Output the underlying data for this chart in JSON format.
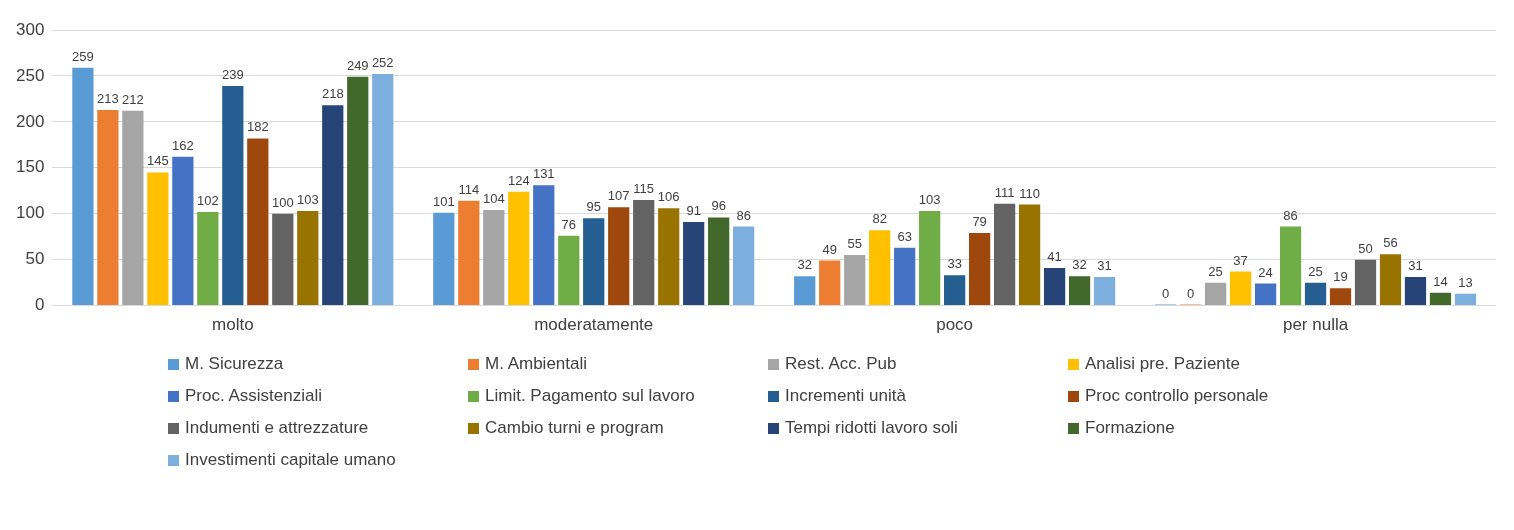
{
  "chart_data": {
    "type": "bar",
    "categories": [
      "molto",
      "moderatamente",
      "poco",
      "per nulla"
    ],
    "series": [
      {
        "name": "M. Sicurezza",
        "color": "#5b9bd5",
        "values": [
          259,
          101,
          32,
          0
        ]
      },
      {
        "name": "M. Ambientali",
        "color": "#ed7d31",
        "values": [
          213,
          114,
          49,
          0
        ]
      },
      {
        "name": "Rest. Acc. Pub",
        "color": "#a5a5a5",
        "values": [
          212,
          104,
          55,
          25
        ]
      },
      {
        "name": "Analisi pre. Paziente",
        "color": "#ffc000",
        "values": [
          145,
          124,
          82,
          37
        ]
      },
      {
        "name": "Proc. Assistenziali",
        "color": "#4472c4",
        "values": [
          162,
          131,
          63,
          24
        ]
      },
      {
        "name": "Limit. Pagamento sul lavoro",
        "color": "#70ad47",
        "values": [
          102,
          76,
          103,
          86
        ]
      },
      {
        "name": "Incrementi unità",
        "color": "#255e91",
        "values": [
          239,
          95,
          33,
          25
        ]
      },
      {
        "name": "Proc controllo personale",
        "color": "#9e480e",
        "values": [
          182,
          107,
          79,
          19
        ]
      },
      {
        "name": "Indumenti e attrezzature",
        "color": "#636363",
        "values": [
          100,
          115,
          111,
          50
        ]
      },
      {
        "name": "Cambio turni e program",
        "color": "#997300",
        "values": [
          103,
          106,
          110,
          56
        ]
      },
      {
        "name": "Tempi ridotti lavoro soli",
        "color": "#264478",
        "values": [
          218,
          91,
          41,
          31
        ]
      },
      {
        "name": "Formazione",
        "color": "#43682b",
        "values": [
          249,
          96,
          32,
          14
        ]
      },
      {
        "name": "Investimenti capitale umano",
        "color": "#7cafdd",
        "values": [
          252,
          86,
          31,
          13
        ]
      }
    ],
    "ylim": [
      0,
      300
    ],
    "yticks": [
      0,
      50,
      100,
      150,
      200,
      250,
      300
    ],
    "grid": "y",
    "legend": "bottom",
    "data_labels": true
  }
}
